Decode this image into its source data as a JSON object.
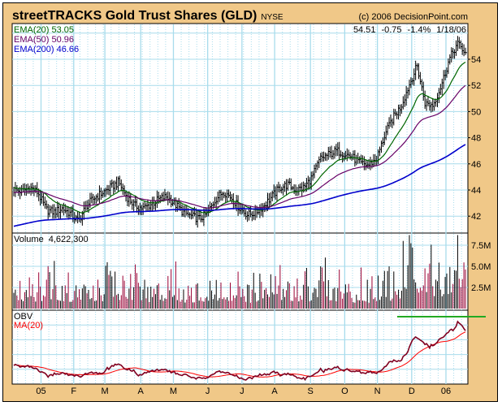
{
  "header": {
    "title": "streetTRACKS Gold Trust Shares (GLD)",
    "exchange": "NYSE",
    "copyright": "(c) 2006 DecisionPoint.com",
    "last": "54.51",
    "change": "-0.75",
    "change_pct": "-1.4%",
    "date": "1/18/06"
  },
  "legend": {
    "ema20": "EMA(20) 53.05",
    "ema50": "EMA(50) 50.96",
    "ema200": "EMA(200) 46.66",
    "volume": "Volume",
    "volume_value": "4,622,300",
    "obv": "OBV",
    "obv_ma": "MA(20)"
  },
  "colors": {
    "background": "#F0C888",
    "grid": "#A8DCEC",
    "ema20": "#006600",
    "ema50": "#660066",
    "ema200": "#0000CC",
    "vol_up": "#000000",
    "vol_down": "#990033",
    "obv": "#800020",
    "obv_ma": "#FF0000",
    "level_line": "#22AA22"
  },
  "chart_data": {
    "type": "ohlc",
    "start_date": "2004-12-08",
    "end_date": "2006-01-18",
    "price_axis": {
      "ticks": [
        "42",
        "44",
        "46",
        "48",
        "50",
        "52",
        "54"
      ],
      "ylim": [
        40.7,
        56.7
      ]
    },
    "volume_axis": {
      "ticks": [
        "2.5M",
        "5.0M",
        "7.5M"
      ],
      "tick_values": [
        2.5,
        5.0,
        7.5
      ],
      "ylim": [
        0,
        8.8
      ],
      "unit": "millions"
    },
    "month_labels": [
      "05",
      "F",
      "M",
      "A",
      "M",
      "J",
      "J",
      "A",
      "S",
      "O",
      "N",
      "D",
      "06"
    ],
    "weekly_closes": [
      44.0,
      43.9,
      44.2,
      43.8,
      42.5,
      42.3,
      42.6,
      42.2,
      41.6,
      42.8,
      43.4,
      43.8,
      44.2,
      44.6,
      43.5,
      42.8,
      42.6,
      42.9,
      43.3,
      43.5,
      42.9,
      42.3,
      42.0,
      41.8,
      42.2,
      43.3,
      43.9,
      43.4,
      42.6,
      42.1,
      42.3,
      42.8,
      43.5,
      44.2,
      44.4,
      44.0,
      44.2,
      45.0,
      46.4,
      46.7,
      47.0,
      46.8,
      46.5,
      46.0,
      45.9,
      46.4,
      48.2,
      49.5,
      50.4,
      52.0,
      53.5,
      50.6,
      50.5,
      52.0,
      54.0,
      55.2,
      54.51
    ],
    "weekly_volume_millions": [
      2.2,
      2.0,
      2.5,
      1.8,
      2.6,
      3.0,
      2.4,
      2.2,
      2.8,
      2.5,
      2.0,
      2.3,
      3.0,
      2.6,
      2.0,
      2.4,
      2.2,
      2.0,
      2.5,
      2.3,
      2.6,
      2.0,
      1.9,
      2.4,
      2.1,
      2.8,
      2.4,
      2.2,
      2.3,
      2.0,
      1.8,
      2.4,
      2.2,
      2.6,
      2.0,
      2.2,
      2.3,
      2.5,
      2.8,
      2.4,
      2.2,
      2.0,
      1.9,
      2.1,
      1.8,
      2.0,
      2.6,
      2.4,
      3.0,
      4.0,
      5.5,
      4.5,
      3.5,
      4.0,
      5.0,
      4.8,
      4.6
    ],
    "ema_seeds": {
      "ema20": 44.2,
      "ema50": 43.8,
      "ema200": 41.2
    },
    "obv_level_line": "resistance"
  }
}
